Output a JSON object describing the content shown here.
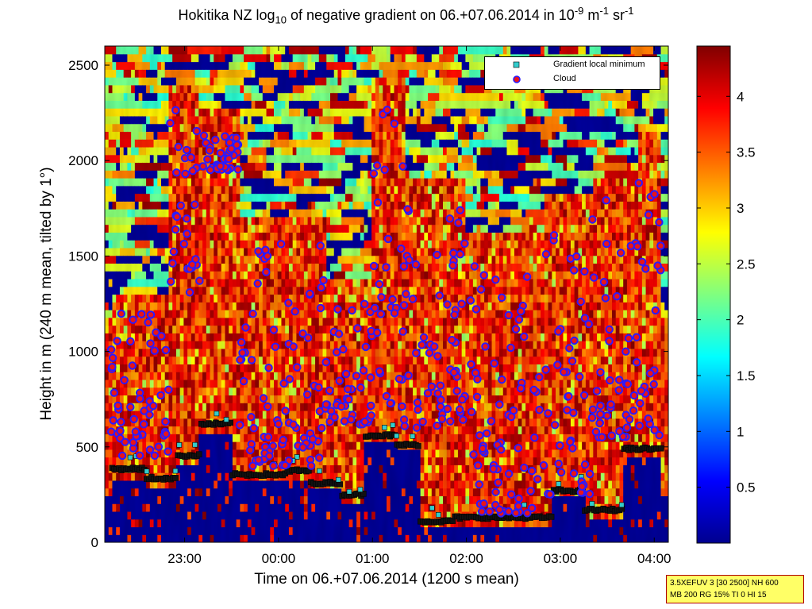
{
  "title": {
    "prefix": "Hokitika NZ log",
    "sub": "10",
    "mid": " of negative gradient on 06.+07.06.2014 in 10",
    "exp": "-9",
    "unit_m": " m",
    "exp_m": "-1",
    "unit_sr": " sr",
    "exp_sr": "-1"
  },
  "xlabel": "Time on 06.+07.06.2014 (1200 s mean)",
  "ylabel": "Height in m (240 m mean, tilted by 1°)",
  "xticks": [
    "23:00",
    "00:00",
    "01:00",
    "02:00",
    "03:00",
    "04:00"
  ],
  "yticks": [
    "0",
    "500",
    "1000",
    "1500",
    "2000",
    "2500"
  ],
  "colorbar_ticks": [
    "0.5",
    "1",
    "1.5",
    "2",
    "2.5",
    "3",
    "3.5",
    "4"
  ],
  "legend": {
    "minimum_label": "Gradient local minimum",
    "cloud_label": "Cloud",
    "minimum_color": "#33cccc",
    "cloud_color": "#e8141a",
    "cloud_edge": "#2a1aff"
  },
  "infobox": {
    "line1": "3.5XEFUV 3 [30 2500] NH 600",
    "line2": "MB 200 RG 15% TI 0 HI 15"
  },
  "chart_data": {
    "type": "heatmap",
    "colormap": "jet",
    "colorbar_range": [
      0,
      4.45
    ],
    "xlim_hours": [
      22.15,
      28.15
    ],
    "ylim": [
      0,
      2600
    ],
    "x_tick_hours": [
      23,
      24,
      25,
      26,
      27,
      28
    ],
    "y_tick_values": [
      0,
      500,
      1000,
      1500,
      2000,
      2500
    ],
    "gradient_minimum_height_segments": [
      {
        "from": "22:13",
        "to": "22:35",
        "height": 385
      },
      {
        "from": "22:35",
        "to": "22:55",
        "height": 335
      },
      {
        "from": "22:55",
        "to": "23:10",
        "height": 455
      },
      {
        "from": "23:10",
        "to": "23:30",
        "height": 620
      },
      {
        "from": "23:30",
        "to": "00:05",
        "height": 355
      },
      {
        "from": "00:05",
        "to": "00:20",
        "height": 375
      },
      {
        "from": "00:20",
        "to": "00:40",
        "height": 310
      },
      {
        "from": "00:40",
        "to": "00:55",
        "height": 250
      },
      {
        "from": "00:55",
        "to": "01:15",
        "height": 560
      },
      {
        "from": "01:15",
        "to": "01:30",
        "height": 510
      },
      {
        "from": "01:30",
        "to": "01:52",
        "height": 110
      },
      {
        "from": "01:52",
        "to": "02:55",
        "height": 130
      },
      {
        "from": "02:55",
        "to": "03:15",
        "height": 270
      },
      {
        "from": "03:15",
        "to": "03:40",
        "height": 170
      },
      {
        "from": "03:40",
        "to": "04:05",
        "height": 490
      }
    ],
    "cloud_height_bands": [
      {
        "from": "22:13",
        "to": "22:50",
        "low": 450,
        "high": 1200
      },
      {
        "from": "22:50",
        "to": "23:10",
        "low": 1300,
        "high": 2280
      },
      {
        "from": "23:10",
        "to": "23:35",
        "low": 1950,
        "high": 2150
      },
      {
        "from": "23:35",
        "to": "00:30",
        "low": 400,
        "high": 1600
      },
      {
        "from": "00:30",
        "to": "01:00",
        "low": 600,
        "high": 1250
      },
      {
        "from": "01:00",
        "to": "01:20",
        "low": 700,
        "high": 2300
      },
      {
        "from": "01:20",
        "to": "02:00",
        "low": 600,
        "high": 1800
      },
      {
        "from": "02:00",
        "to": "02:50",
        "low": 150,
        "high": 1500
      },
      {
        "from": "02:50",
        "to": "03:20",
        "low": 250,
        "high": 1700
      },
      {
        "from": "03:20",
        "to": "03:50",
        "low": 550,
        "high": 1800
      },
      {
        "from": "03:50",
        "to": "04:05",
        "low": 560,
        "high": 2050
      }
    ]
  }
}
